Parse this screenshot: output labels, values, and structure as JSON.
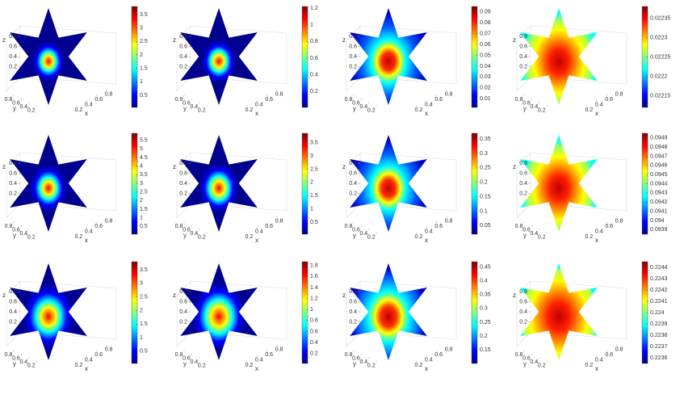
{
  "chart_data": [
    {
      "type": "slice",
      "xlabel": "x",
      "ylabel": "y",
      "zlabel": "z",
      "xlim": [
        0,
        1
      ],
      "ylim": [
        0,
        1
      ],
      "zlim": [
        0,
        1
      ],
      "xticks": [
        0.2,
        0.4,
        0.6,
        0.8
      ],
      "yticks": [
        0.2,
        0.4,
        0.6,
        0.8
      ],
      "zticks": [
        0.2,
        0.4,
        0.6,
        0.8
      ],
      "colormap": "jet",
      "clim": [
        0.05,
        3.8
      ],
      "cticks": [
        0.5,
        1,
        1.5,
        2,
        2.5,
        3,
        3.5
      ]
    },
    {
      "type": "slice",
      "xlabel": "x",
      "ylabel": "y",
      "zlabel": "z",
      "xlim": [
        0,
        1
      ],
      "ylim": [
        0,
        1
      ],
      "zlim": [
        0,
        1
      ],
      "xticks": [
        0.2,
        0.4,
        0.6,
        0.8
      ],
      "yticks": [
        0.2,
        0.4,
        0.6,
        0.8
      ],
      "zticks": [
        0.2,
        0.4,
        0.6,
        0.8
      ],
      "colormap": "jet",
      "clim": [
        0.01,
        1.22
      ],
      "cticks": [
        0.2,
        0.4,
        0.6,
        0.8,
        1,
        1.2
      ]
    },
    {
      "type": "slice",
      "xlabel": "x",
      "ylabel": "y",
      "zlabel": "z",
      "xlim": [
        0,
        1
      ],
      "ylim": [
        0,
        1
      ],
      "zlim": [
        0,
        1
      ],
      "xticks": [
        0.2,
        0.4,
        0.6,
        0.8
      ],
      "yticks": [
        0.2,
        0.4,
        0.6,
        0.8
      ],
      "zticks": [
        0.2,
        0.4,
        0.6,
        0.8
      ],
      "colormap": "jet",
      "clim": [
        0.002,
        0.095
      ],
      "cticks": [
        0.01,
        0.02,
        0.03,
        0.04,
        0.05,
        0.06,
        0.07,
        0.08,
        0.09
      ]
    },
    {
      "type": "slice",
      "xlabel": "x",
      "ylabel": "y",
      "zlabel": "z",
      "xlim": [
        0,
        1
      ],
      "ylim": [
        0,
        1
      ],
      "zlim": [
        0,
        1
      ],
      "xticks": [
        0.2,
        0.4,
        0.6,
        0.8
      ],
      "yticks": [
        0.2,
        0.4,
        0.6,
        0.8
      ],
      "zticks": [
        0.2,
        0.4,
        0.6,
        0.8
      ],
      "colormap": "jet",
      "clim": [
        0.02212,
        0.02238
      ],
      "cticks": [
        0.02215,
        0.0222,
        0.02225,
        0.0223,
        0.02235
      ]
    },
    {
      "type": "slice",
      "xlabel": "x",
      "ylabel": "y",
      "zlabel": "z",
      "xlim": [
        0,
        1
      ],
      "ylim": [
        0,
        1
      ],
      "zlim": [
        0,
        1
      ],
      "xticks": [
        0.2,
        0.4,
        0.6,
        0.8
      ],
      "yticks": [
        0.2,
        0.4,
        0.6,
        0.8
      ],
      "zticks": [
        0.2,
        0.4,
        0.6,
        0.8
      ],
      "colormap": "jet",
      "clim": [
        0.05,
        5.9
      ],
      "cticks": [
        0.5,
        1,
        1.5,
        2,
        2.5,
        3,
        3.5,
        4,
        4.5,
        5,
        5.5
      ]
    },
    {
      "type": "slice",
      "xlabel": "x",
      "ylabel": "y",
      "zlabel": "z",
      "xlim": [
        0,
        1
      ],
      "ylim": [
        0,
        1
      ],
      "zlim": [
        0,
        1
      ],
      "xticks": [
        0.2,
        0.4,
        0.6,
        0.8
      ],
      "yticks": [
        0.2,
        0.4,
        0.6,
        0.8
      ],
      "zticks": [
        0.2,
        0.4,
        0.6,
        0.8
      ],
      "colormap": "jet",
      "clim": [
        0.05,
        3.85
      ],
      "cticks": [
        0.5,
        1,
        1.5,
        2,
        2.5,
        3,
        3.5
      ]
    },
    {
      "type": "slice",
      "xlabel": "x",
      "ylabel": "y",
      "zlabel": "z",
      "xlim": [
        0,
        1
      ],
      "ylim": [
        0,
        1
      ],
      "zlim": [
        0,
        1
      ],
      "xticks": [
        0.2,
        0.4,
        0.6,
        0.8
      ],
      "yticks": [
        0.2,
        0.4,
        0.6,
        0.8
      ],
      "zticks": [
        0.2,
        0.4,
        0.6,
        0.8
      ],
      "colormap": "jet",
      "clim": [
        0.02,
        0.37
      ],
      "cticks": [
        0.05,
        0.1,
        0.15,
        0.2,
        0.25,
        0.3,
        0.35
      ]
    },
    {
      "type": "slice",
      "xlabel": "x",
      "ylabel": "y",
      "zlabel": "z",
      "xlim": [
        0,
        1
      ],
      "ylim": [
        0,
        1
      ],
      "zlim": [
        0,
        1
      ],
      "xticks": [
        0.2,
        0.4,
        0.6,
        0.8
      ],
      "yticks": [
        0.2,
        0.4,
        0.6,
        0.8
      ],
      "zticks": [
        0.2,
        0.4,
        0.6,
        0.8
      ],
      "colormap": "jet",
      "clim": [
        0.09385,
        0.09495
      ],
      "cticks": [
        0.0939,
        0.094,
        0.0941,
        0.0942,
        0.0943,
        0.0944,
        0.0945,
        0.0946,
        0.0947,
        0.0948,
        0.0949
      ]
    },
    {
      "type": "slice",
      "xlabel": "x",
      "ylabel": "y",
      "zlabel": "z",
      "xlim": [
        0,
        1
      ],
      "ylim": [
        0,
        1
      ],
      "zlim": [
        0,
        1
      ],
      "xticks": [
        0.2,
        0.4,
        0.6,
        0.8
      ],
      "yticks": [
        0.2,
        0.4,
        0.6,
        0.8
      ],
      "zticks": [
        0.2,
        0.4,
        0.6,
        0.8
      ],
      "colormap": "jet",
      "clim": [
        0.05,
        3.8
      ],
      "cticks": [
        0.5,
        1,
        1.5,
        2,
        2.5,
        3,
        3.5
      ]
    },
    {
      "type": "slice",
      "xlabel": "x",
      "ylabel": "y",
      "zlabel": "z",
      "xlim": [
        0,
        1
      ],
      "ylim": [
        0,
        1
      ],
      "zlim": [
        0,
        1
      ],
      "xticks": [
        0.2,
        0.4,
        0.6,
        0.8
      ],
      "yticks": [
        0.2,
        0.4,
        0.6,
        0.8
      ],
      "zticks": [
        0.2,
        0.4,
        0.6,
        0.8
      ],
      "colormap": "jet",
      "clim": [
        0.02,
        1.87
      ],
      "cticks": [
        0.2,
        0.4,
        0.6,
        0.8,
        1,
        1.2,
        1.4,
        1.6,
        1.8
      ]
    },
    {
      "type": "slice",
      "xlabel": "x",
      "ylabel": "y",
      "zlabel": "z",
      "xlim": [
        0,
        1
      ],
      "ylim": [
        0,
        1
      ],
      "zlim": [
        0,
        1
      ],
      "xticks": [
        0.2,
        0.4,
        0.6,
        0.8
      ],
      "yticks": [
        0.2,
        0.4,
        0.6,
        0.8
      ],
      "zticks": [
        0.2,
        0.4,
        0.6,
        0.8
      ],
      "colormap": "jet",
      "clim": [
        0.1,
        0.47
      ],
      "cticks": [
        0.15,
        0.2,
        0.25,
        0.3,
        0.35,
        0.4,
        0.45
      ]
    },
    {
      "type": "slice",
      "xlabel": "x",
      "ylabel": "y",
      "zlabel": "z",
      "xlim": [
        0,
        1
      ],
      "ylim": [
        0,
        1
      ],
      "zlim": [
        0,
        1
      ],
      "xticks": [
        0.2,
        0.4,
        0.6,
        0.8
      ],
      "yticks": [
        0.2,
        0.4,
        0.6,
        0.8
      ],
      "zticks": [
        0.2,
        0.4,
        0.6,
        0.8
      ],
      "colormap": "jet",
      "clim": [
        0.22355,
        0.22445
      ],
      "cticks": [
        0.2236,
        0.2237,
        0.2238,
        0.2239,
        0.224,
        0.2241,
        0.2242,
        0.2243,
        0.2244
      ]
    }
  ]
}
